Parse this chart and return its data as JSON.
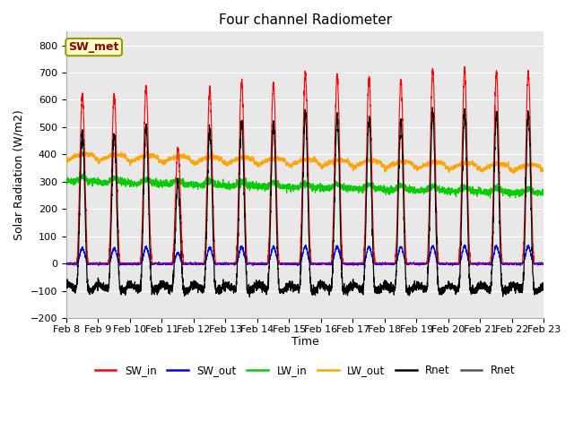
{
  "title": "Four channel Radiometer",
  "ylabel": "Solar Radiation (W/m2)",
  "xlabel": "Time",
  "annotation": "SW_met",
  "ylim": [
    -200,
    850
  ],
  "yticks": [
    -200,
    -100,
    0,
    100,
    200,
    300,
    400,
    500,
    600,
    700,
    800
  ],
  "date_labels": [
    "Feb 8",
    "Feb 9",
    "Feb 10",
    "Feb 11",
    "Feb 12",
    "Feb 13",
    "Feb 14",
    "Feb 15",
    "Feb 16",
    "Feb 17",
    "Feb 18",
    "Feb 19",
    "Feb 20",
    "Feb 21",
    "Feb 22",
    "Feb 23"
  ],
  "series": {
    "SW_in": {
      "color": "#ff0000",
      "lw": 0.8
    },
    "SW_out": {
      "color": "#0000ff",
      "lw": 0.8
    },
    "LW_in": {
      "color": "#00cc00",
      "lw": 0.8
    },
    "LW_out": {
      "color": "#ffa500",
      "lw": 0.8
    },
    "Rnet": {
      "color": "#000000",
      "lw": 0.9
    },
    "Rnet2": {
      "color": "#555555",
      "lw": 0.8
    }
  },
  "legend_entries": [
    {
      "label": "SW_in",
      "color": "#ff0000"
    },
    {
      "label": "SW_out",
      "color": "#0000ff"
    },
    {
      "label": "LW_in",
      "color": "#00cc00"
    },
    {
      "label": "LW_out",
      "color": "#ffa500"
    },
    {
      "label": "Rnet",
      "color": "#000000"
    },
    {
      "label": "Rnet",
      "color": "#555555"
    }
  ],
  "fig_bg": "#ffffff",
  "plot_bg": "#e8e8e8",
  "title_fontsize": 11,
  "axis_fontsize": 9,
  "tick_fontsize": 8,
  "day_peaks_sw": [
    620,
    620,
    650,
    420,
    640,
    670,
    660,
    700,
    690,
    680,
    670,
    710,
    710,
    700,
    700
  ],
  "n_days": 15
}
